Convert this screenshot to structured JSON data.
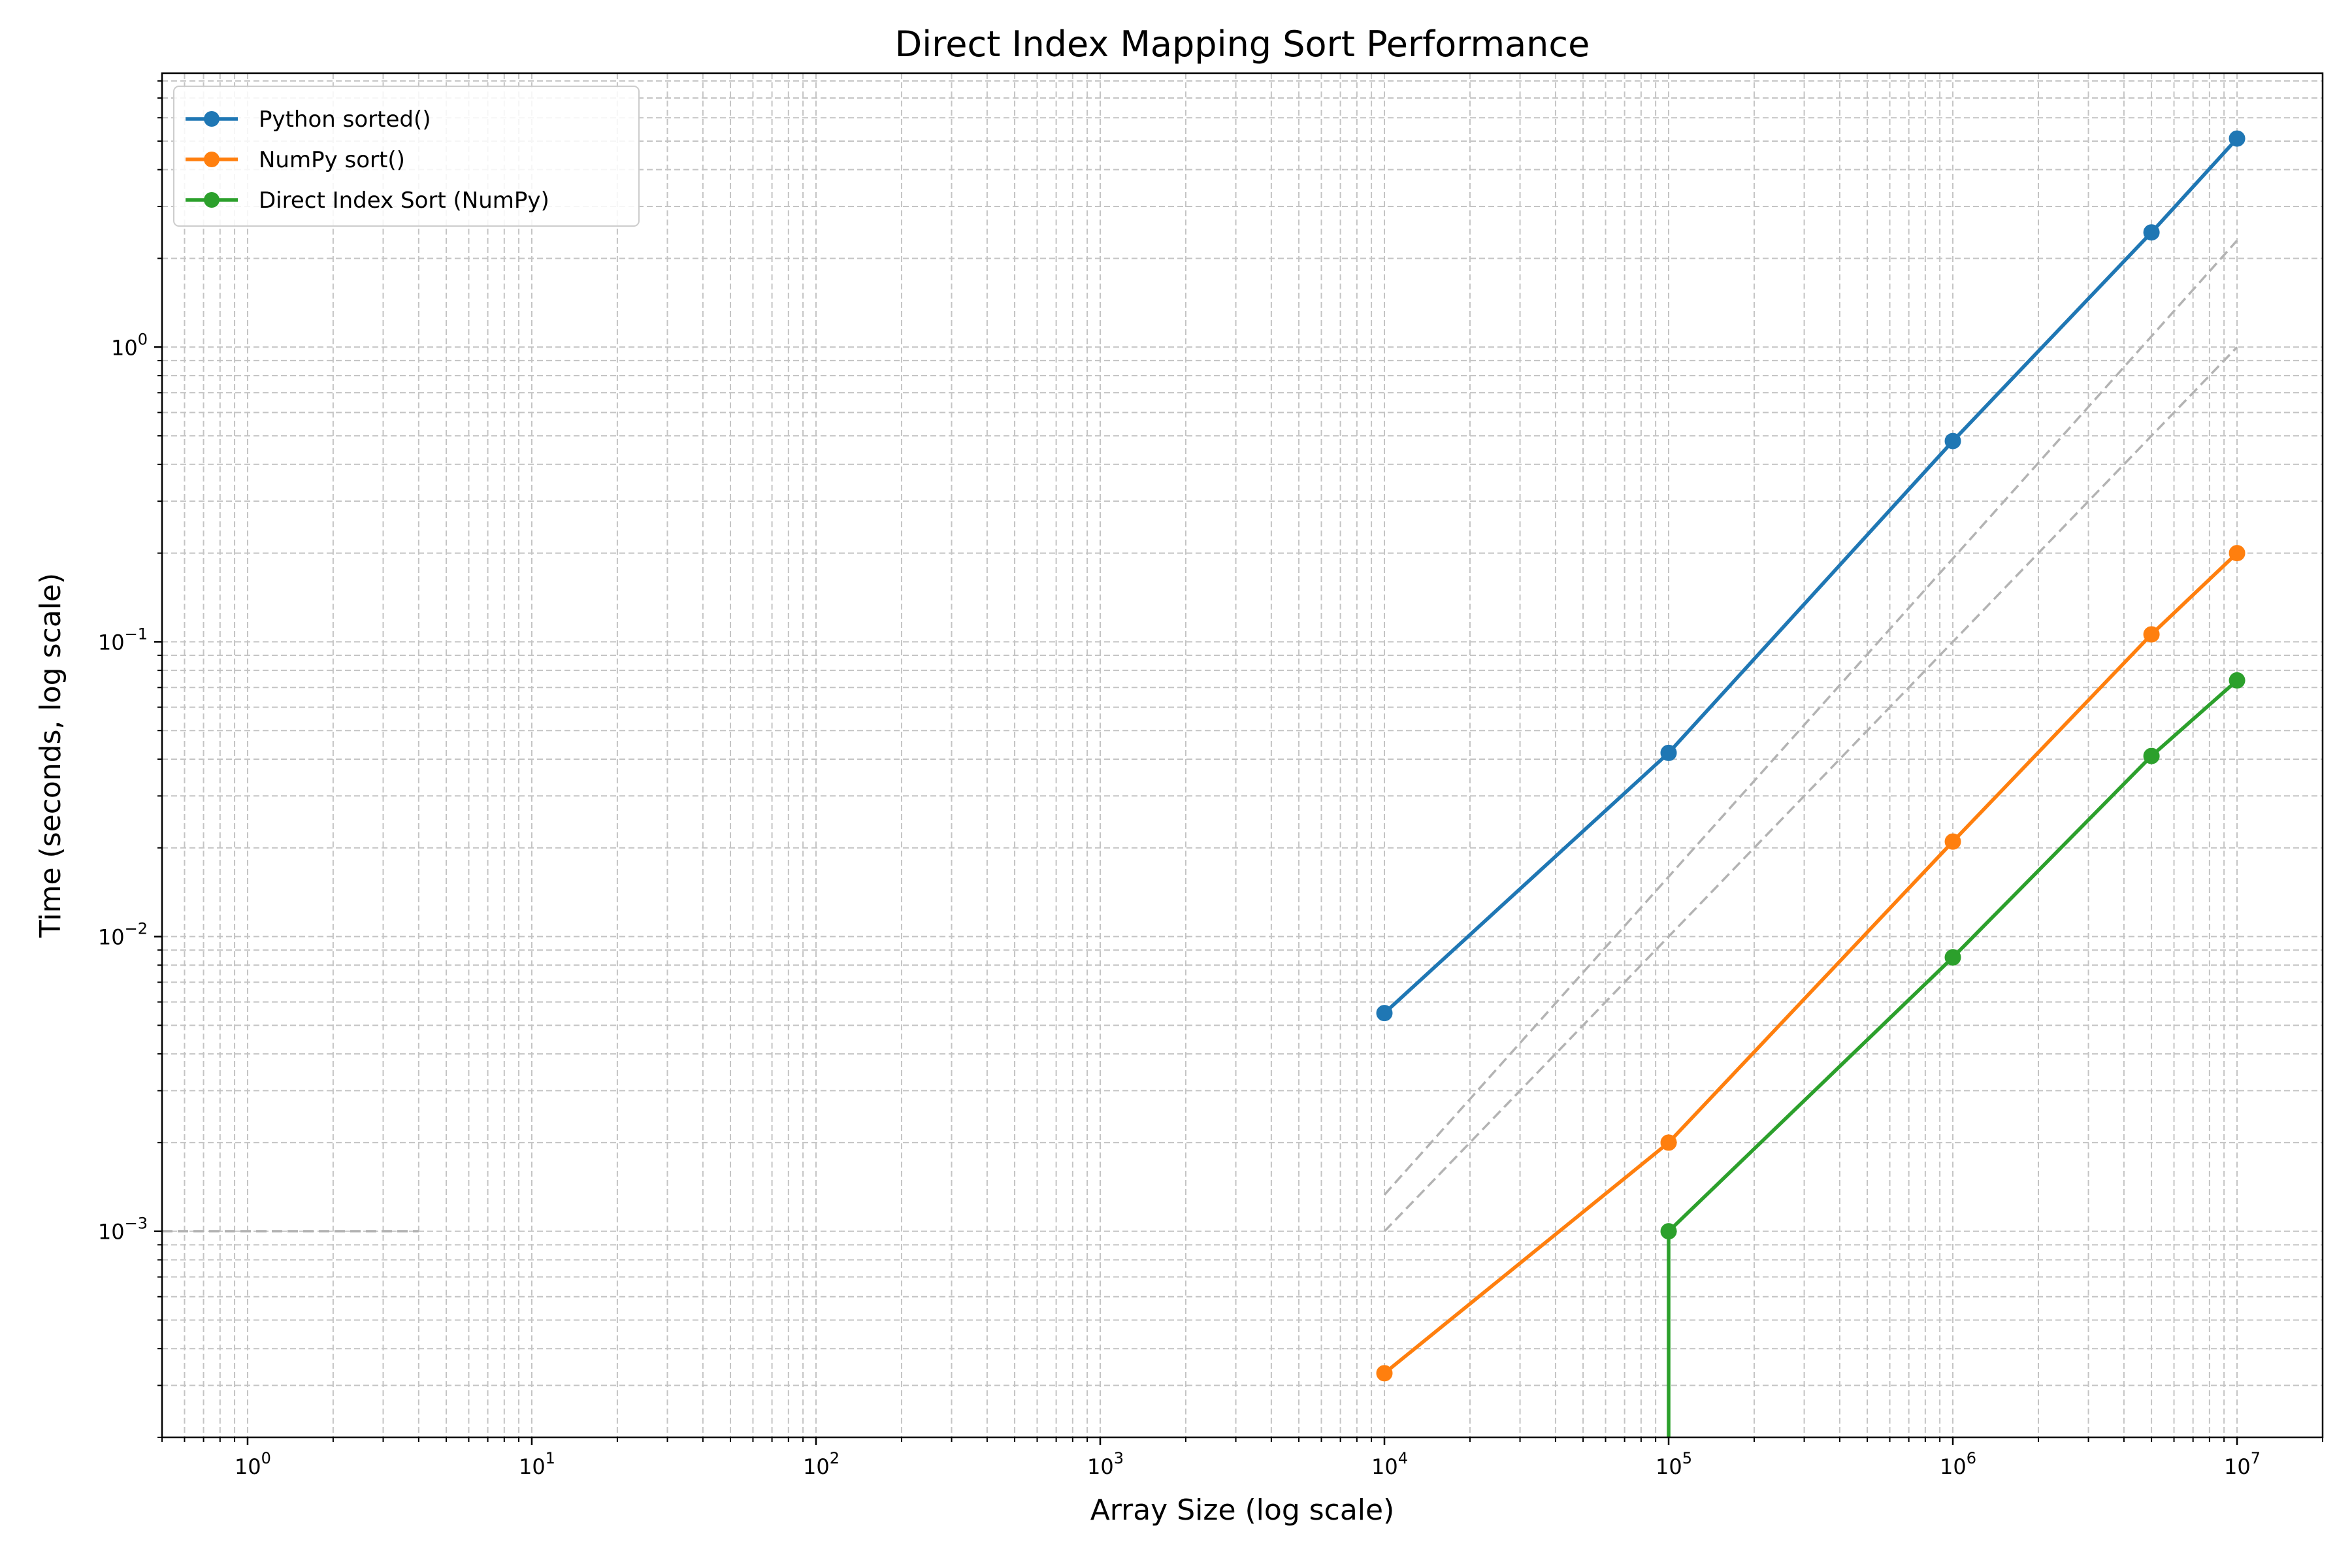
{
  "chart_data": {
    "type": "line",
    "title": "Direct Index Mapping Sort Performance",
    "xlabel": "Array Size (log scale)",
    "ylabel": "Time (seconds, log scale)",
    "xscale": "log",
    "yscale": "log",
    "xlim": [
      0.5,
      20000000
    ],
    "ylim": [
      0.0002,
      8.5
    ],
    "grid": "both (major and minor), dashed",
    "legend": "top-left",
    "x_ticks": [
      {
        "value": 1,
        "label": "10^0"
      },
      {
        "value": 10,
        "label": "10^1"
      },
      {
        "value": 100,
        "label": "10^2"
      },
      {
        "value": 1000,
        "label": "10^3"
      },
      {
        "value": 10000,
        "label": "10^4"
      },
      {
        "value": 100000,
        "label": "10^5"
      },
      {
        "value": 1000000,
        "label": "10^6"
      },
      {
        "value": 10000000,
        "label": "10^7"
      }
    ],
    "y_ticks": [
      {
        "value": 0.001,
        "label": "10^−3"
      },
      {
        "value": 0.01,
        "label": "10^−2"
      },
      {
        "value": 0.1,
        "label": "10^−1"
      },
      {
        "value": 1,
        "label": "10^0"
      }
    ],
    "series": [
      {
        "name": "Python sorted()",
        "color": "#1f77b4",
        "x": [
          10000,
          100000,
          1000000,
          5000000,
          10000000
        ],
        "y": [
          0.0055,
          0.042,
          0.48,
          2.45,
          5.1
        ]
      },
      {
        "name": "NumPy sort()",
        "color": "#ff7f0e",
        "x": [
          10000,
          100000,
          1000000,
          5000000,
          10000000
        ],
        "y": [
          0.00033,
          0.002,
          0.021,
          0.106,
          0.2
        ]
      },
      {
        "name": "Direct Index Sort (NumPy)",
        "color": "#2ca02c",
        "x": [
          100000,
          100000,
          1000000,
          5000000,
          10000000
        ],
        "y": [
          0.0001,
          0.001,
          0.0085,
          0.041,
          0.074
        ]
      }
    ],
    "reference_lines": [
      {
        "color": "#b3b3b3",
        "style": "dashed",
        "x": [
          10000,
          10000000
        ],
        "y": [
          0.00133,
          2.3
        ]
      },
      {
        "color": "#b3b3b3",
        "style": "dashed",
        "x": [
          10000,
          10000000
        ],
        "y": [
          0.001,
          1.0
        ]
      },
      {
        "color": "#b3b3b3",
        "style": "dashed",
        "x": [
          0.5,
          4
        ],
        "y": [
          0.001,
          0.001
        ]
      }
    ]
  }
}
